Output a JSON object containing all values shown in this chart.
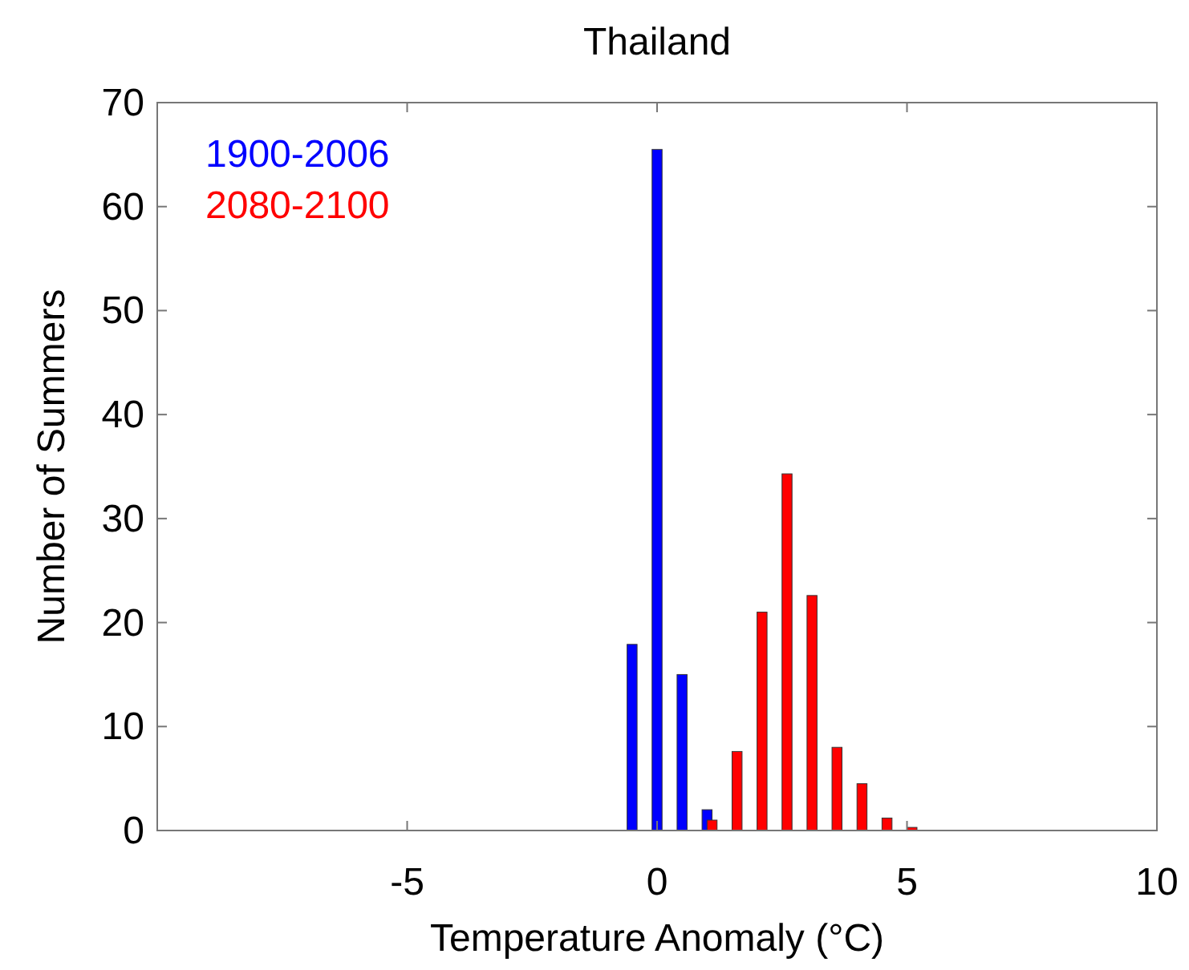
{
  "chart_data": {
    "type": "bar",
    "title": "Thailand",
    "xlabel": "Temperature Anomaly (°C)",
    "ylabel": "Number of Summers",
    "xlim": [
      -10,
      10
    ],
    "xticks": [
      {
        "value": -10,
        "label": null
      },
      -5,
      0,
      5,
      10
    ],
    "ylim": [
      0,
      70
    ],
    "yticks": [
      0,
      10,
      20,
      30,
      40,
      50,
      60,
      70
    ],
    "grid": false,
    "legend": "top left",
    "series": [
      {
        "name": "1900-2006",
        "color": "#0000ff",
        "x": [
          -0.5,
          0,
          0.5,
          1
        ],
        "values": [
          17.9,
          65.5,
          15,
          2
        ]
      },
      {
        "name": "2080-2100",
        "color": "#ff0000",
        "x": [
          1.1,
          1.6,
          2.1,
          2.6,
          3.1,
          3.6,
          4.1,
          4.6,
          5.1
        ],
        "values": [
          1,
          7.6,
          21,
          34.3,
          22.6,
          8,
          4.5,
          1.2,
          0.3
        ]
      }
    ]
  }
}
